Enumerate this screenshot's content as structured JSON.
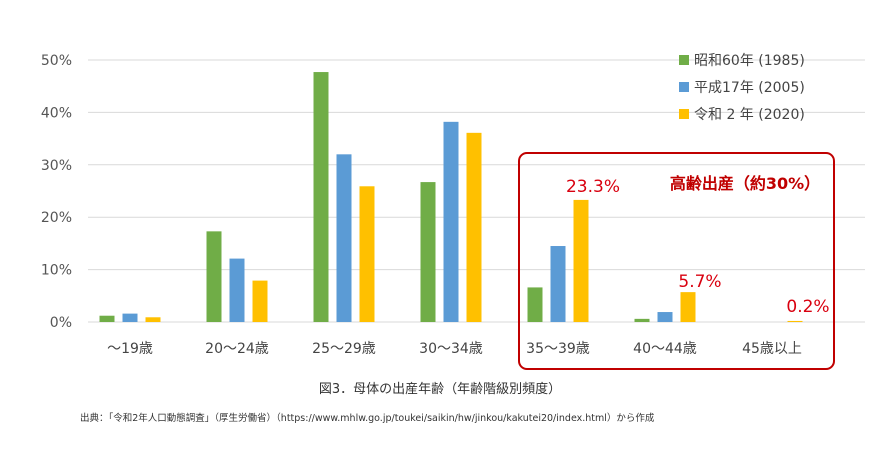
{
  "chart_data": {
    "type": "bar",
    "categories": [
      "～19歳",
      "20～24歳",
      "25～29歳",
      "30～34歳",
      "35～39歳",
      "40～44歳",
      "45歳以上"
    ],
    "series": [
      {
        "name": "昭和60年 (1985)",
        "color": "#70ad47",
        "values": [
          1.2,
          17.3,
          47.7,
          26.7,
          6.6,
          0.6,
          0.0
        ]
      },
      {
        "name": "平成17年 (2005)",
        "color": "#5b9bd5",
        "values": [
          1.6,
          12.1,
          32.0,
          38.2,
          14.5,
          1.9,
          0.0
        ]
      },
      {
        "name": "令和 2 年 (2020)",
        "color": "#ffc000",
        "values": [
          0.9,
          7.9,
          25.9,
          36.1,
          23.3,
          5.7,
          0.2
        ]
      }
    ],
    "yticks": [
      "0%",
      "10%",
      "20%",
      "30%",
      "40%",
      "50%"
    ],
    "ylim": [
      0,
      50
    ],
    "grid": true,
    "legend": "top-right",
    "data_labels": [
      "23.3%",
      "5.7%",
      "0.2%"
    ],
    "annotation": "高齢出産（約30%）",
    "highlight_color": "#c00000"
  },
  "caption": "図3．母体の出産年齢（年齢階級別頻度）",
  "source": "出典：「令和2年人口動態調査」（厚生労働省）（https://www.mhlw.go.jp/toukei/saikin/hw/jinkou/kakutei20/index.html）から作成"
}
